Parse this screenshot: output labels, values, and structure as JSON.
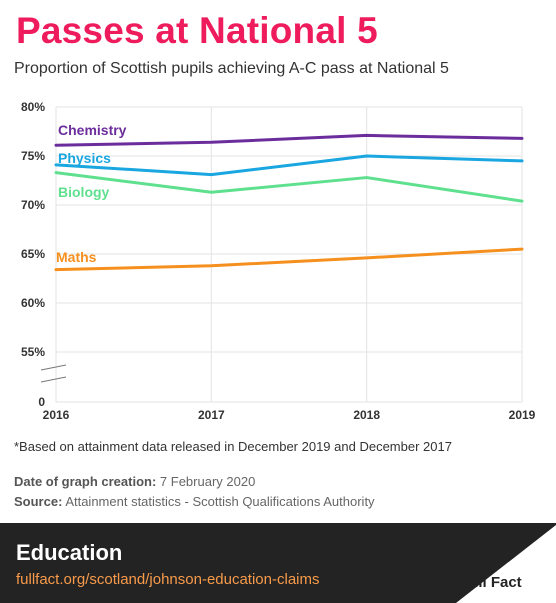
{
  "header": {
    "title": "Passes at National 5",
    "subtitle": "Proportion of Scottish pupils achieving A-C pass at National 5"
  },
  "footnote": "*Based on attainment data released in December 2019 and December 2017",
  "meta": {
    "date_label": "Date of graph creation:",
    "date_value": "7 February 2020",
    "source_label": "Source:",
    "source_value": "Attainment statistics - Scottish Qualifications Authority"
  },
  "footer": {
    "section": "Education",
    "url": "fullfact.org/scotland/johnson-education-claims",
    "logo_text": "Full Fact"
  },
  "colors": {
    "title": "#ee1c5d",
    "chemistry": "#6c2d9c",
    "physics": "#1aa6e0",
    "biology": "#5fe08e",
    "maths": "#f5901e",
    "footer_bg": "#232323",
    "footer_url": "#f79a4a"
  },
  "chart_data": {
    "type": "line",
    "x": [
      "2016",
      "2017",
      "2018",
      "2019"
    ],
    "y_ticks": [
      "80%",
      "75%",
      "70%",
      "65%",
      "60%",
      "55%",
      "0"
    ],
    "y_break": "broken y-axis between 55% and 0",
    "ylim": [
      55,
      80
    ],
    "grid": true,
    "series": [
      {
        "name": "Chemistry",
        "color": "#6c2d9c",
        "values": [
          76.1,
          76.4,
          77.1,
          76.8
        ]
      },
      {
        "name": "Physics",
        "color": "#1aa6e0",
        "values": [
          74.1,
          73.1,
          75.0,
          74.5
        ]
      },
      {
        "name": "Biology",
        "color": "#5fe08e",
        "values": [
          73.3,
          71.3,
          72.8,
          70.4
        ]
      },
      {
        "name": "Maths",
        "color": "#f5901e",
        "values": [
          63.4,
          63.8,
          64.6,
          65.5
        ]
      }
    ]
  }
}
